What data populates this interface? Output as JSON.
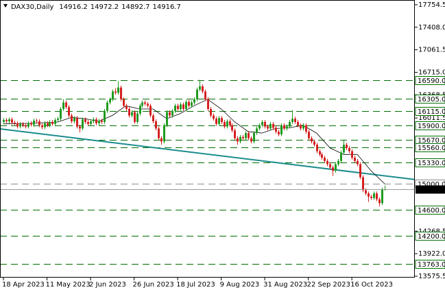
{
  "chart_data": {
    "type": "candlestick",
    "title": "DAX30,Daily",
    "up_color": "#1f9a1f",
    "down_color": "#d42020",
    "categories": [
      "18 Apr 2023",
      null,
      null,
      null,
      null,
      null,
      null,
      null,
      null,
      null,
      null,
      null,
      null,
      null,
      null,
      null,
      "11 May 2023",
      null,
      null,
      null,
      null,
      null,
      null,
      null,
      null,
      null,
      null,
      null,
      null,
      null,
      null,
      null,
      "2 Jun 2023",
      null,
      null,
      null,
      null,
      null,
      null,
      null,
      null,
      null,
      null,
      null,
      null,
      null,
      null,
      null,
      "26 Jun 2023",
      null,
      null,
      null,
      null,
      null,
      null,
      null,
      null,
      null,
      null,
      null,
      null,
      null,
      null,
      null,
      "18 Jul 2023",
      null,
      null,
      null,
      null,
      null,
      null,
      null,
      null,
      null,
      null,
      null,
      null,
      null,
      null,
      null,
      "9 Aug 2023",
      null,
      null,
      null,
      null,
      null,
      null,
      null,
      null,
      null,
      null,
      null,
      null,
      null,
      null,
      null,
      "31 Aug 2023",
      null,
      null,
      null,
      null,
      null,
      null,
      null,
      null,
      null,
      null,
      null,
      null,
      null,
      null,
      null,
      "22 Sep 2023",
      null,
      null,
      null,
      null,
      null,
      null,
      null,
      null,
      null,
      null,
      null,
      null,
      null,
      null,
      null,
      "16 Oct 2023",
      null,
      null,
      null,
      null,
      null,
      null,
      null,
      null,
      null,
      null,
      null,
      null
    ],
    "open": [
      15950,
      15980,
      15960,
      15990,
      15940,
      15930,
      15880,
      15920,
      15900,
      15880,
      15930,
      15910,
      15970,
      15960,
      15900,
      15870,
      15930,
      15900,
      15950,
      15920,
      15980,
      16000,
      16150,
      16250,
      16180,
      16050,
      15960,
      16010,
      15880,
      15850,
      15990,
      15950,
      15920,
      15960,
      15990,
      15930,
      15970,
      15950,
      16120,
      16250,
      16300,
      16420,
      16400,
      16480,
      16300,
      16200,
      16150,
      16050,
      16100,
      15950,
      16080,
      16200,
      16250,
      16230,
      16200,
      16050,
      15960,
      15850,
      15700,
      15650,
      15900,
      16100,
      16050,
      16120,
      16200,
      16150,
      16220,
      16150,
      16260,
      16200,
      16250,
      16300,
      16450,
      16500,
      16420,
      16300,
      16150,
      16050,
      16000,
      15920,
      16010,
      15950,
      15880,
      15960,
      15900,
      15820,
      15700,
      15650,
      15720,
      15700,
      15780,
      15700,
      15650,
      15780,
      15850,
      15900,
      15950,
      15880,
      15850,
      15920,
      15860,
      15800,
      15760,
      15900,
      15850,
      15880,
      15950,
      16000,
      15950,
      15900,
      15850,
      15900,
      15800,
      15700,
      15650,
      15600,
      15500,
      15450,
      15400,
      15350,
      15300,
      15250,
      15200,
      15300,
      15350,
      15480,
      15600,
      15550,
      15500,
      15400,
      15350,
      15300,
      15100,
      14900,
      14850,
      14800,
      14780,
      14850,
      14760,
      14700,
      14916.2
    ],
    "high": [
      16010,
      16010,
      16020,
      16020,
      15970,
      15960,
      15950,
      15950,
      15930,
      15960,
      15960,
      16000,
      16000,
      15990,
      15930,
      15960,
      15960,
      15980,
      15980,
      16010,
      16030,
      16180,
      16300,
      16280,
      16210,
      16080,
      16040,
      16040,
      15910,
      16020,
      16020,
      15980,
      15990,
      16020,
      16020,
      16000,
      16000,
      16150,
      16280,
      16330,
      16450,
      16470,
      16580,
      16510,
      16330,
      16230,
      16180,
      16130,
      16130,
      16110,
      16230,
      16280,
      16280,
      16260,
      16230,
      16080,
      15990,
      15880,
      15730,
      15930,
      16130,
      16130,
      16150,
      16230,
      16230,
      16250,
      16250,
      16290,
      16290,
      16280,
      16330,
      16480,
      16600,
      16530,
      16450,
      16330,
      16180,
      16080,
      16030,
      16040,
      16040,
      15980,
      15990,
      15990,
      15930,
      15850,
      15730,
      15750,
      15750,
      15810,
      15810,
      15730,
      15810,
      15880,
      15930,
      15980,
      15980,
      15910,
      15950,
      15950,
      15890,
      15830,
      15930,
      15930,
      15910,
      15980,
      16130,
      16030,
      15980,
      15930,
      15930,
      15930,
      15830,
      15730,
      15680,
      15630,
      15530,
      15480,
      15430,
      15380,
      15330,
      15280,
      15330,
      15380,
      15510,
      15680,
      15630,
      15580,
      15530,
      15430,
      15380,
      15330,
      15130,
      14930,
      14880,
      14830,
      14880,
      14880,
      14790,
      14940,
      14972.2
    ],
    "low": [
      15920,
      15930,
      15930,
      15910,
      15900,
      15850,
      15850,
      15870,
      15850,
      15850,
      15880,
      15880,
      15930,
      15870,
      15840,
      15840,
      15870,
      15870,
      15890,
      15890,
      15950,
      15970,
      16120,
      16150,
      16020,
      15930,
      15930,
      15850,
      15790,
      15820,
      15920,
      15890,
      15890,
      15930,
      15900,
      15900,
      15920,
      15920,
      16090,
      16220,
      16270,
      16370,
      16370,
      16270,
      16170,
      16120,
      16020,
      16020,
      15920,
      15920,
      16050,
      16170,
      16200,
      16170,
      16020,
      15930,
      15820,
      15670,
      15600,
      15620,
      15870,
      16020,
      16020,
      16090,
      16120,
      16120,
      16120,
      16120,
      16170,
      16170,
      16220,
      16270,
      16420,
      16390,
      16270,
      16120,
      16020,
      15970,
      15890,
      15890,
      15920,
      15850,
      15850,
      15870,
      15790,
      15670,
      15600,
      15620,
      15670,
      15670,
      15670,
      15620,
      15620,
      15750,
      15820,
      15870,
      15850,
      15820,
      15820,
      15830,
      15770,
      15730,
      15730,
      15820,
      15820,
      15850,
      15920,
      15920,
      15870,
      15820,
      15820,
      15770,
      15670,
      15620,
      15570,
      15470,
      15420,
      15370,
      15320,
      15270,
      15220,
      15120,
      15170,
      15270,
      15320,
      15450,
      15520,
      15470,
      15370,
      15320,
      15270,
      15070,
      14870,
      14820,
      14720,
      14750,
      14750,
      14730,
      14650,
      14670,
      14892.7
    ],
    "close": [
      15980,
      15960,
      15990,
      15940,
      15930,
      15880,
      15920,
      15900,
      15880,
      15930,
      15910,
      15970,
      15960,
      15900,
      15870,
      15930,
      15900,
      15950,
      15920,
      15980,
      16000,
      16150,
      16250,
      16180,
      16050,
      15960,
      16010,
      15880,
      15850,
      15990,
      15950,
      15920,
      15960,
      15990,
      15930,
      15970,
      15950,
      16120,
      16250,
      16300,
      16420,
      16400,
      16480,
      16300,
      16200,
      16150,
      16050,
      16100,
      15950,
      16080,
      16200,
      16250,
      16230,
      16200,
      16050,
      15960,
      15850,
      15700,
      15650,
      15900,
      16100,
      16050,
      16120,
      16200,
      16150,
      16220,
      16150,
      16260,
      16200,
      16250,
      16300,
      16450,
      16500,
      16420,
      16300,
      16150,
      16050,
      16000,
      15920,
      16010,
      15950,
      15880,
      15960,
      15900,
      15820,
      15700,
      15650,
      15720,
      15700,
      15780,
      15700,
      15650,
      15780,
      15850,
      15900,
      15950,
      15880,
      15850,
      15920,
      15860,
      15800,
      15760,
      15900,
      15850,
      15880,
      15950,
      16000,
      15950,
      15900,
      15850,
      15900,
      15800,
      15700,
      15650,
      15600,
      15500,
      15450,
      15400,
      15350,
      15300,
      15250,
      15200,
      15300,
      15350,
      15480,
      15600,
      15550,
      15500,
      15400,
      15350,
      15300,
      15100,
      14900,
      14850,
      14800,
      14780,
      14850,
      14760,
      14700,
      14910,
      14916.7
    ],
    "ma": {
      "color": "#000000",
      "x": [
        0,
        10,
        20,
        25,
        30,
        35,
        40,
        45,
        50,
        55,
        60,
        65,
        70,
        75,
        80,
        85,
        90,
        95,
        100,
        105,
        110,
        115,
        120,
        125,
        130,
        135,
        140
      ],
      "values": [
        15920,
        15930,
        15950,
        16020,
        16000,
        15960,
        16050,
        16200,
        16150,
        16150,
        16000,
        16080,
        16200,
        16300,
        16150,
        15950,
        15800,
        15780,
        15850,
        15860,
        15900,
        15780,
        15550,
        15450,
        15450,
        15200,
        15000
      ]
    },
    "trendline": {
      "color": "#1a8c8c",
      "values": [
        15844,
        15064
      ]
    },
    "levels": [
      {
        "value": 16590,
        "label": "16590.0",
        "color": "#006e00"
      },
      {
        "value": 16305,
        "label": "16305.0",
        "color": "#006e00"
      },
      {
        "value": 16115,
        "label": "16115.0",
        "color": "#006e00"
      },
      {
        "value": 15900,
        "label": "15900.0",
        "color": "#006e00"
      },
      {
        "value": 15670,
        "label": "15670.0",
        "color": "#006e00"
      },
      {
        "value": 15560,
        "label": "15560.0",
        "color": "#006e00"
      },
      {
        "value": 15330,
        "label": "15330.0",
        "color": "#006e00"
      },
      {
        "value": 15000,
        "label": "15000.0",
        "color": "#8a8a8a"
      },
      {
        "value": 14600,
        "label": "14600.0",
        "color": "#006e00"
      },
      {
        "value": 14200,
        "label": "14200.0",
        "color": "#006e00"
      },
      {
        "value": 13763,
        "label": "13763.0",
        "color": "#006e00"
      }
    ],
    "price_line_color": "#9a9a9a",
    "ylim": [
      13554,
      17828
    ],
    "yticks": [
      17754.5,
      {
        "value": 17408,
        "label": "17408.0"
      },
      17061.5,
      {
        "value": 16715,
        "label": "16715.0"
      },
      16368.5,
      16011.5,
      14268.5,
      {
        "value": 13922,
        "label": "13922.0"
      },
      13575.5
    ]
  }
}
